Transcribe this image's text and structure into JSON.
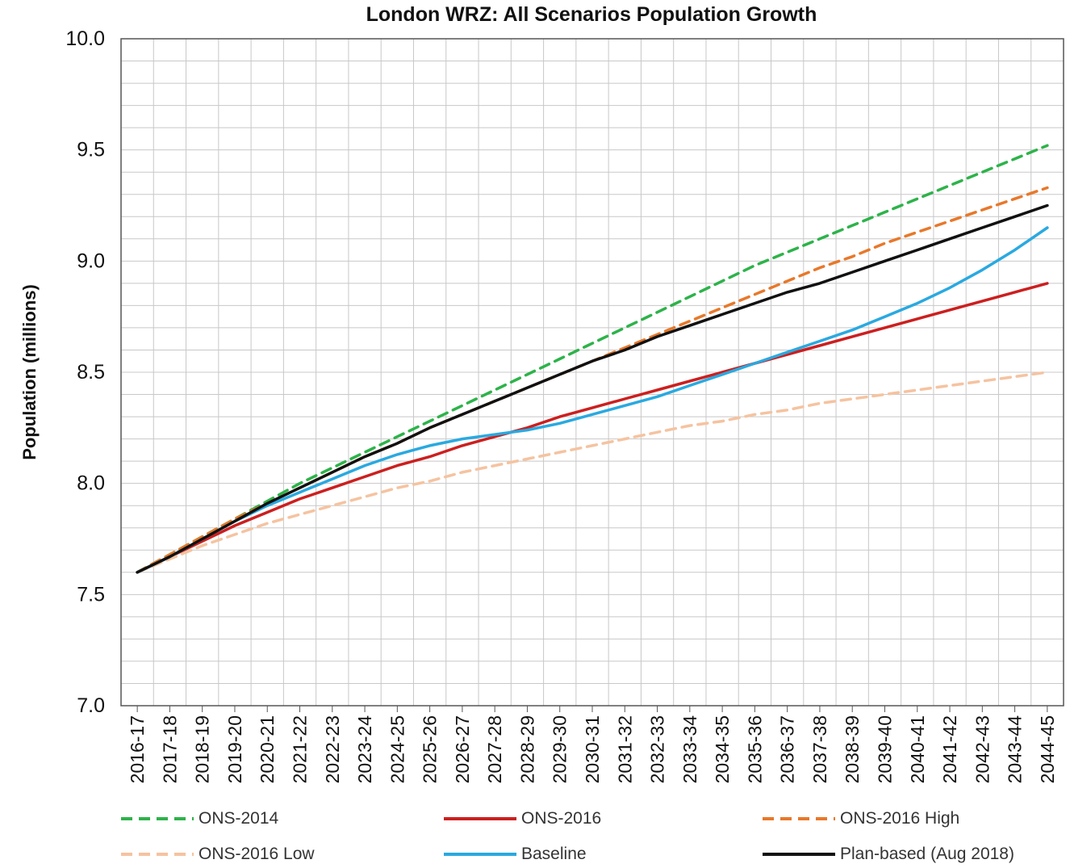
{
  "chart_data": {
    "type": "line",
    "title": "London WRZ: All Scenarios Population Growth",
    "ylabel": "Population (millions)",
    "xlabel": "",
    "ylim": [
      7.0,
      10.0
    ],
    "yticks": [
      "7.0",
      "7.5",
      "8.0",
      "8.5",
      "9.0",
      "9.5",
      "10.0"
    ],
    "grid": true,
    "legend_position": "bottom",
    "categories": [
      "2016-17",
      "2017-18",
      "2018-19",
      "2019-20",
      "2020-21",
      "2021-22",
      "2022-23",
      "2023-24",
      "2024-25",
      "2025-26",
      "2026-27",
      "2027-28",
      "2028-29",
      "2029-30",
      "2030-31",
      "2031-32",
      "2032-33",
      "2033-34",
      "2034-35",
      "2035-36",
      "2036-37",
      "2037-38",
      "2038-39",
      "2039-40",
      "2040-41",
      "2041-42",
      "2042-43",
      "2043-44",
      "2044-45"
    ],
    "series": [
      {
        "name": "ONS-2014",
        "color": "#2db34a",
        "dash": true,
        "values": [
          7.6,
          7.68,
          7.76,
          7.84,
          7.92,
          8.0,
          8.07,
          8.14,
          8.21,
          8.28,
          8.35,
          8.42,
          8.49,
          8.56,
          8.63,
          8.7,
          8.77,
          8.84,
          8.91,
          8.98,
          9.04,
          9.1,
          9.16,
          9.22,
          9.28,
          9.34,
          9.4,
          9.46,
          9.52
        ]
      },
      {
        "name": "ONS-2016",
        "color": "#cc1f1f",
        "dash": false,
        "values": [
          7.6,
          7.67,
          7.74,
          7.81,
          7.87,
          7.93,
          7.98,
          8.03,
          8.08,
          8.12,
          8.17,
          8.21,
          8.25,
          8.3,
          8.34,
          8.38,
          8.42,
          8.46,
          8.5,
          8.54,
          8.58,
          8.62,
          8.66,
          8.7,
          8.74,
          8.78,
          8.82,
          8.86,
          8.9
        ]
      },
      {
        "name": "ONS-2016 High",
        "color": "#e8782a",
        "dash": true,
        "values": [
          7.6,
          7.68,
          7.76,
          7.84,
          7.91,
          7.98,
          8.05,
          8.12,
          8.18,
          8.25,
          8.31,
          8.37,
          8.43,
          8.49,
          8.55,
          8.61,
          8.67,
          8.73,
          8.79,
          8.85,
          8.91,
          8.97,
          9.02,
          9.08,
          9.13,
          9.18,
          9.23,
          9.28,
          9.33
        ]
      },
      {
        "name": "ONS-2016 Low",
        "color": "#f5c3a0",
        "dash": true,
        "values": [
          7.6,
          7.66,
          7.72,
          7.77,
          7.82,
          7.86,
          7.9,
          7.94,
          7.98,
          8.01,
          8.05,
          8.08,
          8.11,
          8.14,
          8.17,
          8.2,
          8.23,
          8.26,
          8.28,
          8.31,
          8.33,
          8.36,
          8.38,
          8.4,
          8.42,
          8.44,
          8.46,
          8.48,
          8.5
        ]
      },
      {
        "name": "Baseline",
        "color": "#2aa9e0",
        "dash": false,
        "values": [
          7.6,
          7.67,
          7.75,
          7.83,
          7.9,
          7.96,
          8.02,
          8.08,
          8.13,
          8.17,
          8.2,
          8.22,
          8.24,
          8.27,
          8.31,
          8.35,
          8.39,
          8.44,
          8.49,
          8.54,
          8.59,
          8.64,
          8.69,
          8.75,
          8.81,
          8.88,
          8.96,
          9.05,
          9.15
        ]
      },
      {
        "name": "Plan-based (Aug 2018)",
        "color": "#111111",
        "dash": false,
        "values": [
          7.6,
          7.67,
          7.75,
          7.83,
          7.91,
          7.98,
          8.05,
          8.12,
          8.18,
          8.25,
          8.31,
          8.37,
          8.43,
          8.49,
          8.55,
          8.6,
          8.66,
          8.71,
          8.76,
          8.81,
          8.86,
          8.9,
          8.95,
          9.0,
          9.05,
          9.1,
          9.15,
          9.2,
          9.25
        ]
      }
    ]
  }
}
